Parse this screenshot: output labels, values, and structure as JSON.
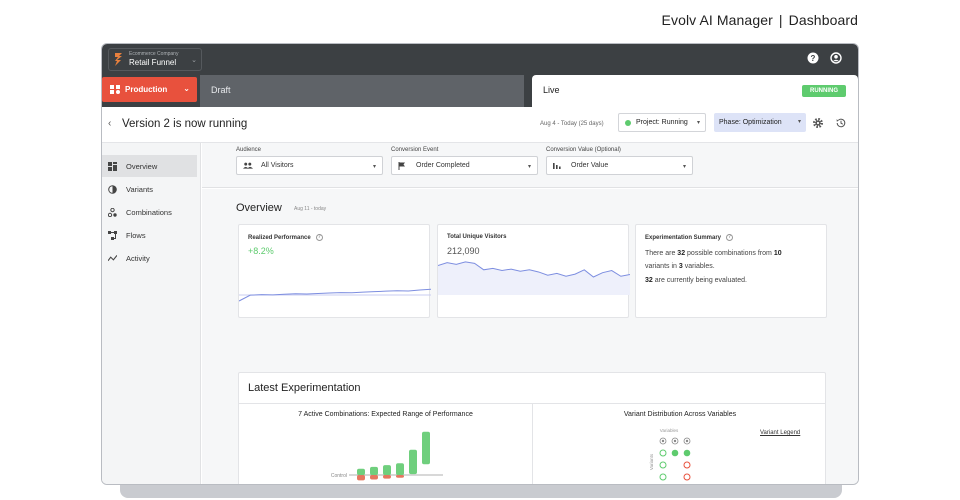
{
  "page_heading": {
    "brand": "Evolv AI Manager",
    "separator": "|",
    "section": "Dashboard"
  },
  "topbar": {
    "company": "Ecommerce Company",
    "funnel": "Retail Funnel",
    "icons": [
      "help-icon",
      "account-icon"
    ]
  },
  "env": {
    "environment": "Production",
    "tab_draft": "Draft",
    "tab_live": "Live",
    "status_badge": "RUNNING"
  },
  "titlebar": {
    "title": "Version 2 is now running",
    "date_range": "Aug 4 - Today (25 days)",
    "project_status": "Project: Running",
    "phase": "Phase: Optimization",
    "icons": [
      "settings-icon",
      "history-icon"
    ]
  },
  "sidebar": {
    "items": [
      {
        "label": "Overview",
        "icon": "grid-icon",
        "active": true
      },
      {
        "label": "Variants",
        "icon": "half-circle-icon"
      },
      {
        "label": "Combinations",
        "icon": "combinations-icon"
      },
      {
        "label": "Flows",
        "icon": "flows-icon"
      },
      {
        "label": "Activity",
        "icon": "activity-icon"
      }
    ]
  },
  "filters": {
    "audience": {
      "label": "Audience",
      "value": "All Visitors",
      "icon": "people-icon"
    },
    "conversion_event": {
      "label": "Conversion Event",
      "value": "Order Completed",
      "icon": "flag-icon"
    },
    "conversion_value": {
      "label": "Conversion Value (Optional)",
      "value": "Order Value",
      "icon": "bar-chart-icon"
    }
  },
  "overview": {
    "title": "Overview",
    "date": "Aug 11 - today",
    "cards": {
      "realized": {
        "title": "Realized Performance",
        "value": "+8.2%"
      },
      "visitors": {
        "title": "Total Unique Visitors",
        "value": "212,090"
      },
      "summary": {
        "title": "Experimentation Summary",
        "line1_a": "There are ",
        "line1_num": "32",
        "line1_b": " possible combinations from ",
        "line1_num2": "10",
        "line2_a": "variants in ",
        "line2_num": "3",
        "line2_b": " variables.",
        "line3_num": "32",
        "line3_b": " are currently being evaluated."
      }
    }
  },
  "latest": {
    "title": "Latest Experimentation",
    "combos_title": "7 Active Combinations: Expected Range of Performance",
    "control_label": "Control",
    "distribution_title": "Variant Distribution Across Variables",
    "variables_label": "Variables",
    "variants_label": "Variants",
    "legend_link": "Variant Legend"
  },
  "colors": {
    "accent_red": "#e8513d",
    "green": "#5ecb6e",
    "dark_bar": "#3c4043",
    "sparkline": "#7d8ee0"
  },
  "chart_data": [
    {
      "type": "line",
      "title": "Realized Performance",
      "values": [
        0.0,
        0.25,
        0.27,
        0.26,
        0.29,
        0.31,
        0.3,
        0.32,
        0.34,
        0.36,
        0.35,
        0.38,
        0.4,
        0.42,
        0.44,
        0.43,
        0.47,
        0.5
      ]
    },
    {
      "type": "area",
      "title": "Total Unique Visitors",
      "values": [
        0.82,
        0.9,
        0.85,
        0.92,
        0.88,
        0.7,
        0.74,
        0.68,
        0.72,
        0.66,
        0.7,
        0.64,
        0.55,
        0.6,
        0.52,
        0.58,
        0.7,
        0.5,
        0.62,
        0.68,
        0.52,
        0.57
      ]
    },
    {
      "type": "bar",
      "title": "7 Active Combinations: Expected Range of Performance",
      "categories": [
        "1",
        "2",
        "3",
        "4",
        "5",
        "6",
        "7"
      ],
      "ranges": [
        [
          -0.6,
          0.7
        ],
        [
          -0.5,
          0.9
        ],
        [
          -0.4,
          1.1
        ],
        [
          -0.3,
          1.3
        ],
        [
          0.1,
          2.8
        ],
        [
          1.2,
          4.8
        ],
        [
          0,
          0
        ]
      ]
    },
    {
      "type": "heatmap",
      "title": "Variant Distribution Across Variables",
      "rows": [
        [
          "header",
          "header",
          "header"
        ],
        [
          "green",
          "green-filled",
          "green-filled"
        ],
        [
          "green",
          "",
          "red"
        ],
        [
          "green",
          "",
          "red"
        ]
      ]
    }
  ]
}
